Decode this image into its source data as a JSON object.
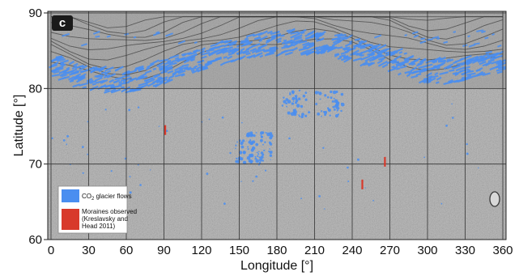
{
  "panel_label": "c",
  "chart_data": {
    "type": "map",
    "xlabel": "Longitude [°]",
    "ylabel": "Latitude [°]",
    "xlim": [
      0,
      360
    ],
    "ylim": [
      60,
      90
    ],
    "x_ticks": [
      0,
      30,
      60,
      90,
      120,
      150,
      180,
      210,
      240,
      270,
      300,
      330,
      360
    ],
    "y_ticks": [
      60,
      70,
      80,
      90
    ],
    "grid": true,
    "legend_position": "bottom-left",
    "legend": [
      {
        "label_parts": [
          "CO",
          "2",
          " glacier flows"
        ],
        "color": "#4a8ef0"
      },
      {
        "label_lines": [
          "Moraines observed",
          "(Kreslavsky and",
          "Head 2011)"
        ],
        "color": "#d8392b"
      }
    ],
    "moraines": [
      {
        "lon": 91,
        "lat": 74.5
      },
      {
        "lon": 248,
        "lat": 67.3
      },
      {
        "lon": 266,
        "lat": 70.3
      }
    ],
    "glacier_band": [
      [
        0,
        82.5
      ],
      [
        15,
        81.6
      ],
      [
        30,
        80.8
      ],
      [
        45,
        80.4
      ],
      [
        60,
        80.5
      ],
      [
        75,
        80.9
      ],
      [
        90,
        81.6
      ],
      [
        105,
        82.5
      ],
      [
        120,
        83.3
      ],
      [
        135,
        84.0
      ],
      [
        150,
        84.6
      ],
      [
        165,
        85.1
      ],
      [
        180,
        85.4
      ],
      [
        195,
        85.6
      ],
      [
        210,
        85.5
      ],
      [
        225,
        85.1
      ],
      [
        240,
        84.6
      ],
      [
        255,
        83.9
      ],
      [
        270,
        83.1
      ],
      [
        285,
        82.4
      ],
      [
        300,
        81.8
      ],
      [
        315,
        81.6
      ],
      [
        330,
        81.9
      ],
      [
        345,
        82.5
      ],
      [
        360,
        83.0
      ]
    ],
    "glacier_clusters": [
      {
        "lon": 165,
        "lat": 72.5
      },
      {
        "lon": 195,
        "lat": 78
      },
      {
        "lon": 222,
        "lat": 78
      },
      {
        "lon": 158,
        "lat": 71.5
      }
    ]
  }
}
